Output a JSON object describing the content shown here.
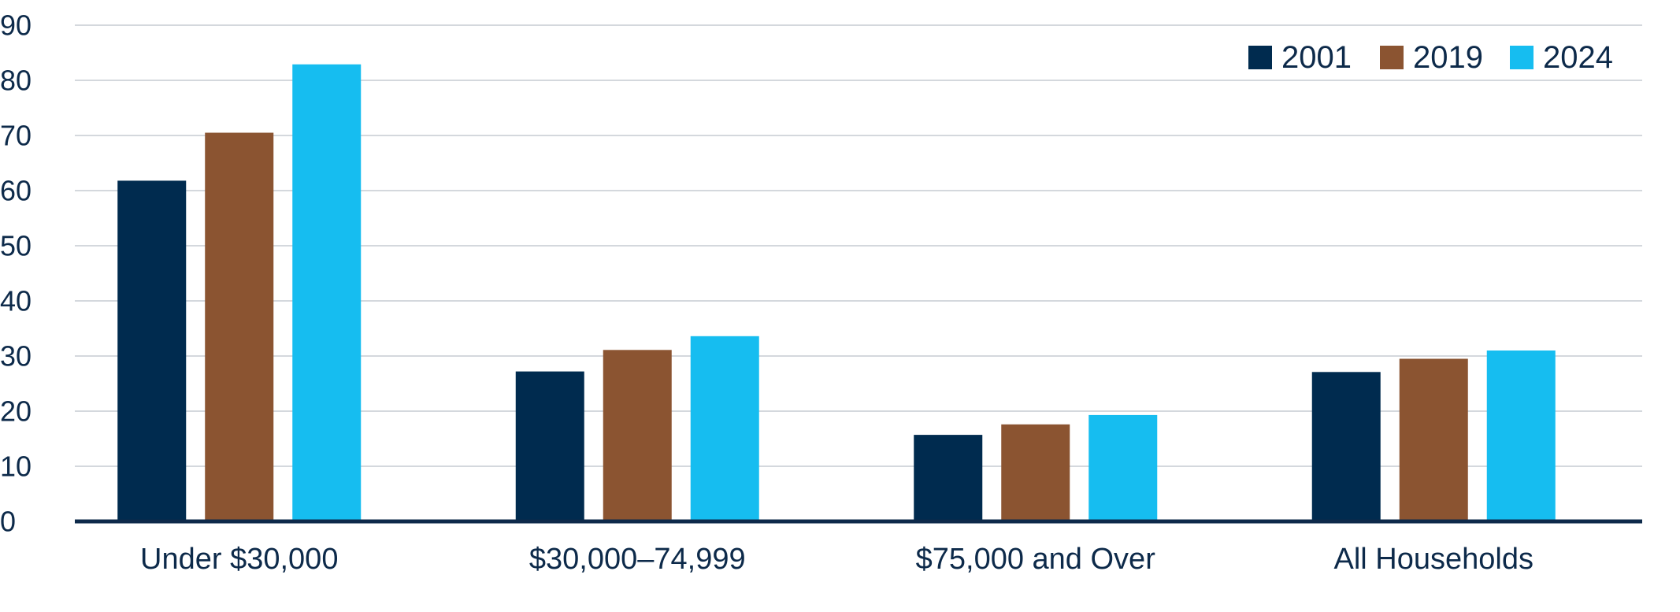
{
  "chart_data": {
    "type": "bar",
    "title": "",
    "xlabel": "",
    "ylabel": "",
    "ylim": [
      0,
      90
    ],
    "yticks": [
      0,
      10,
      20,
      30,
      40,
      50,
      60,
      70,
      80,
      90
    ],
    "grid": true,
    "legend": "top-right",
    "categories": [
      "Under $30,000",
      "$30,000–74,999",
      "$75,000 and Over",
      "All Households"
    ],
    "series": [
      {
        "name": "2001",
        "color": "#002b4f",
        "values": [
          61.8,
          27.2,
          15.7,
          27.1
        ]
      },
      {
        "name": "2019",
        "color": "#8b5431",
        "values": [
          70.5,
          31.1,
          17.6,
          29.5
        ]
      },
      {
        "name": "2024",
        "color": "#16bdf0",
        "values": [
          82.9,
          33.6,
          19.3,
          31.0
        ]
      }
    ]
  }
}
